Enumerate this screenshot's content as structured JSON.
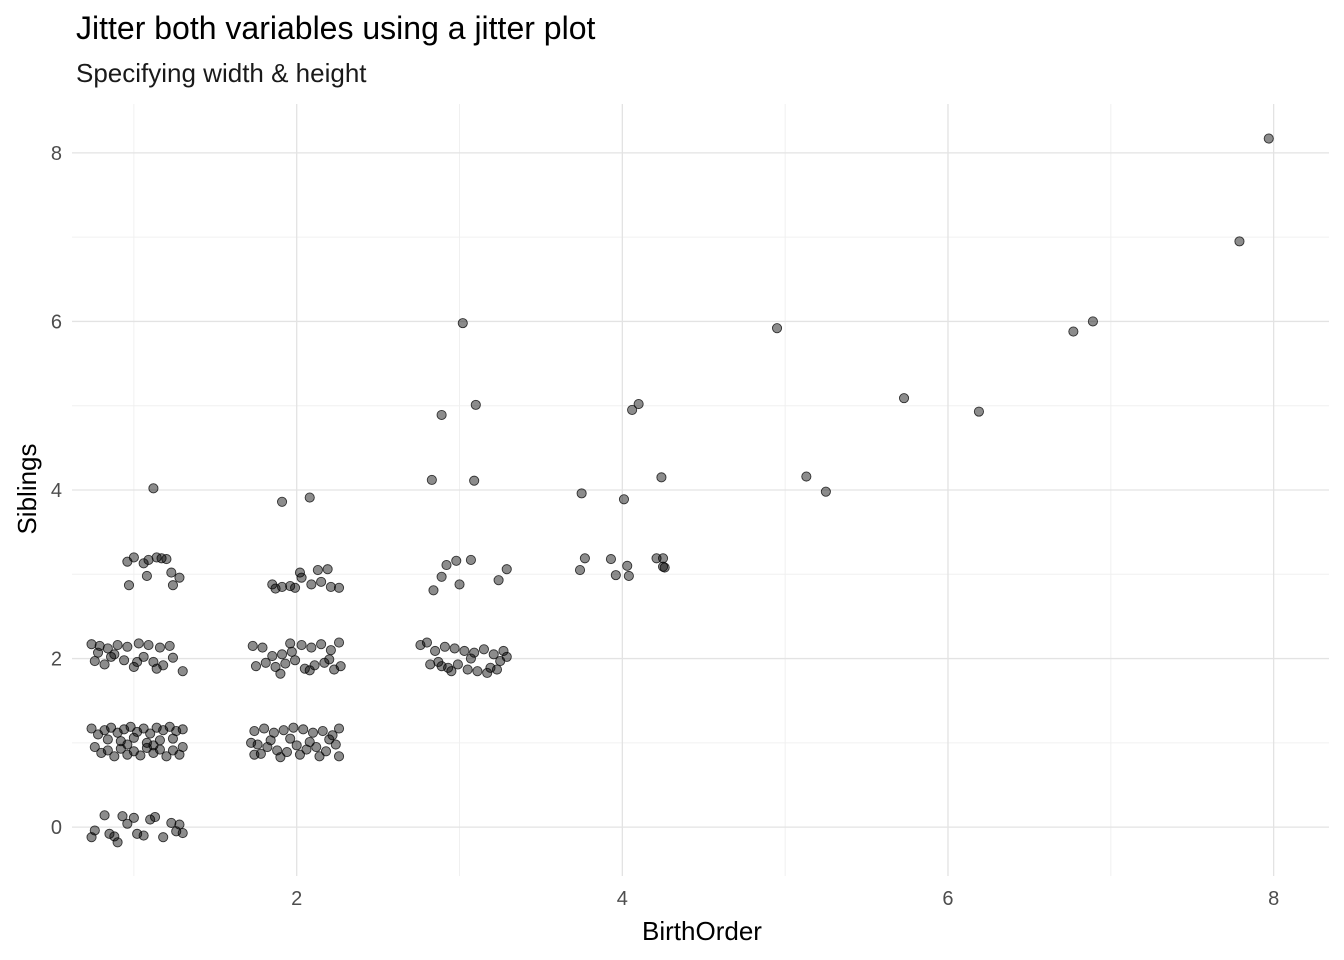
{
  "chart_data": {
    "type": "scatter",
    "title": "Jitter both variables using a jitter plot",
    "subtitle": "Specifying width & height",
    "xlabel": "BirthOrder",
    "ylabel": "Siblings",
    "xlim": [
      0.62,
      8.34
    ],
    "ylim": [
      -0.58,
      8.58
    ],
    "x_ticks": [
      2,
      4,
      6,
      8
    ],
    "y_ticks": [
      0,
      2,
      4,
      6,
      8
    ],
    "grid": true,
    "point_color": "#000000",
    "point_opacity": 0.45,
    "points": [
      [
        1.12,
        4.02
      ],
      [
        1.09,
        3.17
      ],
      [
        1.17,
        3.19
      ],
      [
        1.06,
        3.13
      ],
      [
        1.0,
        3.2
      ],
      [
        0.96,
        3.15
      ],
      [
        1.2,
        3.18
      ],
      [
        1.23,
        3.02
      ],
      [
        1.28,
        2.96
      ],
      [
        0.97,
        2.87
      ],
      [
        1.24,
        2.87
      ],
      [
        1.14,
        3.2
      ],
      [
        1.08,
        2.98
      ],
      [
        0.74,
        2.17
      ],
      [
        0.79,
        2.15
      ],
      [
        0.84,
        2.12
      ],
      [
        0.9,
        2.16
      ],
      [
        0.96,
        2.14
      ],
      [
        1.03,
        2.18
      ],
      [
        1.09,
        2.16
      ],
      [
        1.16,
        2.13
      ],
      [
        1.22,
        2.15
      ],
      [
        0.76,
        1.97
      ],
      [
        0.82,
        1.93
      ],
      [
        0.88,
        2.05
      ],
      [
        0.94,
        1.98
      ],
      [
        1.0,
        1.9
      ],
      [
        1.06,
        2.02
      ],
      [
        1.12,
        1.96
      ],
      [
        1.18,
        1.92
      ],
      [
        1.24,
        2.01
      ],
      [
        1.3,
        1.85
      ],
      [
        0.86,
        2.02
      ],
      [
        1.02,
        1.96
      ],
      [
        1.14,
        1.88
      ],
      [
        0.78,
        2.07
      ],
      [
        0.74,
        1.17
      ],
      [
        0.78,
        1.1
      ],
      [
        0.82,
        1.15
      ],
      [
        0.86,
        1.18
      ],
      [
        0.9,
        1.12
      ],
      [
        0.94,
        1.16
      ],
      [
        0.98,
        1.19
      ],
      [
        1.02,
        1.13
      ],
      [
        1.06,
        1.17
      ],
      [
        1.1,
        1.11
      ],
      [
        1.14,
        1.18
      ],
      [
        1.18,
        1.15
      ],
      [
        1.22,
        1.19
      ],
      [
        1.26,
        1.14
      ],
      [
        1.3,
        1.16
      ],
      [
        0.76,
        0.95
      ],
      [
        0.8,
        0.88
      ],
      [
        0.84,
        0.91
      ],
      [
        0.88,
        0.84
      ],
      [
        0.92,
        0.93
      ],
      [
        0.96,
        0.86
      ],
      [
        1.0,
        0.9
      ],
      [
        1.04,
        0.85
      ],
      [
        1.08,
        0.94
      ],
      [
        1.12,
        0.88
      ],
      [
        1.16,
        0.92
      ],
      [
        1.2,
        0.84
      ],
      [
        1.24,
        0.91
      ],
      [
        1.28,
        0.86
      ],
      [
        1.3,
        0.95
      ],
      [
        0.84,
        1.04
      ],
      [
        0.92,
        1.02
      ],
      [
        1.0,
        1.06
      ],
      [
        1.08,
        1.0
      ],
      [
        1.16,
        1.03
      ],
      [
        1.24,
        1.05
      ],
      [
        0.96,
        0.98
      ],
      [
        1.12,
        0.97
      ],
      [
        0.74,
        -0.12
      ],
      [
        0.76,
        -0.04
      ],
      [
        0.82,
        0.14
      ],
      [
        0.85,
        -0.08
      ],
      [
        0.9,
        -0.18
      ],
      [
        0.93,
        0.13
      ],
      [
        0.96,
        0.04
      ],
      [
        1.0,
        0.11
      ],
      [
        1.02,
        -0.08
      ],
      [
        1.06,
        -0.1
      ],
      [
        1.1,
        0.09
      ],
      [
        1.13,
        0.12
      ],
      [
        1.18,
        -0.12
      ],
      [
        1.23,
        0.05
      ],
      [
        1.26,
        -0.05
      ],
      [
        1.28,
        0.03
      ],
      [
        1.3,
        -0.07
      ],
      [
        0.88,
        -0.11
      ],
      [
        1.91,
        3.86
      ],
      [
        2.08,
        3.91
      ],
      [
        2.02,
        3.02
      ],
      [
        2.13,
        3.05
      ],
      [
        2.19,
        3.06
      ],
      [
        1.85,
        2.88
      ],
      [
        1.91,
        2.85
      ],
      [
        1.96,
        2.86
      ],
      [
        2.03,
        2.96
      ],
      [
        2.09,
        2.88
      ],
      [
        2.15,
        2.91
      ],
      [
        2.21,
        2.85
      ],
      [
        2.26,
        2.84
      ],
      [
        1.87,
        2.83
      ],
      [
        1.99,
        2.84
      ],
      [
        1.73,
        2.15
      ],
      [
        1.79,
        2.13
      ],
      [
        1.85,
        2.03
      ],
      [
        1.91,
        2.05
      ],
      [
        1.97,
        2.08
      ],
      [
        2.03,
        2.16
      ],
      [
        2.09,
        2.13
      ],
      [
        2.15,
        2.17
      ],
      [
        2.21,
        2.1
      ],
      [
        2.26,
        2.19
      ],
      [
        1.75,
        1.91
      ],
      [
        1.81,
        1.95
      ],
      [
        1.87,
        1.9
      ],
      [
        1.93,
        1.94
      ],
      [
        1.99,
        1.98
      ],
      [
        2.05,
        1.88
      ],
      [
        2.11,
        1.92
      ],
      [
        2.17,
        1.95
      ],
      [
        2.23,
        1.87
      ],
      [
        2.27,
        1.91
      ],
      [
        1.9,
        1.82
      ],
      [
        2.08,
        1.86
      ],
      [
        2.2,
        1.99
      ],
      [
        1.96,
        2.18
      ],
      [
        1.74,
        1.14
      ],
      [
        1.8,
        1.17
      ],
      [
        1.86,
        1.12
      ],
      [
        1.92,
        1.15
      ],
      [
        1.98,
        1.18
      ],
      [
        2.04,
        1.16
      ],
      [
        2.1,
        1.12
      ],
      [
        2.16,
        1.14
      ],
      [
        2.22,
        1.09
      ],
      [
        2.26,
        1.17
      ],
      [
        1.76,
        0.98
      ],
      [
        1.82,
        0.95
      ],
      [
        1.88,
        0.91
      ],
      [
        1.94,
        0.89
      ],
      [
        2.0,
        0.97
      ],
      [
        2.06,
        0.92
      ],
      [
        2.12,
        0.95
      ],
      [
        2.18,
        0.9
      ],
      [
        2.24,
        0.98
      ],
      [
        1.78,
        0.87
      ],
      [
        1.9,
        0.83
      ],
      [
        2.02,
        0.86
      ],
      [
        2.14,
        0.84
      ],
      [
        2.26,
        0.84
      ],
      [
        1.84,
        1.03
      ],
      [
        1.96,
        1.05
      ],
      [
        2.08,
        1.01
      ],
      [
        2.2,
        1.04
      ],
      [
        1.74,
        0.86
      ],
      [
        1.72,
        1.0
      ],
      [
        3.02,
        5.98
      ],
      [
        2.89,
        4.89
      ],
      [
        3.1,
        5.01
      ],
      [
        2.83,
        4.12
      ],
      [
        3.09,
        4.11
      ],
      [
        2.92,
        3.11
      ],
      [
        2.98,
        3.16
      ],
      [
        3.07,
        3.17
      ],
      [
        3.29,
        3.06
      ],
      [
        2.89,
        2.97
      ],
      [
        3.0,
        2.88
      ],
      [
        3.24,
        2.93
      ],
      [
        2.84,
        2.81
      ],
      [
        2.76,
        2.16
      ],
      [
        2.8,
        2.19
      ],
      [
        2.85,
        2.09
      ],
      [
        2.91,
        2.14
      ],
      [
        2.97,
        2.12
      ],
      [
        3.03,
        2.09
      ],
      [
        3.09,
        2.07
      ],
      [
        3.15,
        2.11
      ],
      [
        3.21,
        2.05
      ],
      [
        3.27,
        2.09
      ],
      [
        2.82,
        1.93
      ],
      [
        2.87,
        1.96
      ],
      [
        2.93,
        1.89
      ],
      [
        2.99,
        1.93
      ],
      [
        3.05,
        1.87
      ],
      [
        3.11,
        1.85
      ],
      [
        3.17,
        1.83
      ],
      [
        3.23,
        1.87
      ],
      [
        3.29,
        2.02
      ],
      [
        2.95,
        1.85
      ],
      [
        3.07,
        2.0
      ],
      [
        3.19,
        1.89
      ],
      [
        3.25,
        1.97
      ],
      [
        2.89,
        1.91
      ],
      [
        3.75,
        3.96
      ],
      [
        4.01,
        3.89
      ],
      [
        4.06,
        4.95
      ],
      [
        4.1,
        5.02
      ],
      [
        4.24,
        4.15
      ],
      [
        3.77,
        3.19
      ],
      [
        3.93,
        3.18
      ],
      [
        4.03,
        3.1
      ],
      [
        4.21,
        3.19
      ],
      [
        4.25,
        3.19
      ],
      [
        3.74,
        3.05
      ],
      [
        3.96,
        2.99
      ],
      [
        4.04,
        2.98
      ],
      [
        4.25,
        3.09
      ],
      [
        4.26,
        3.08
      ],
      [
        4.95,
        5.92
      ],
      [
        5.13,
        4.16
      ],
      [
        5.25,
        3.98
      ],
      [
        5.73,
        5.09
      ],
      [
        6.19,
        4.93
      ],
      [
        6.77,
        5.88
      ],
      [
        6.89,
        6.0
      ],
      [
        7.79,
        6.95
      ],
      [
        7.97,
        8.17
      ]
    ]
  }
}
